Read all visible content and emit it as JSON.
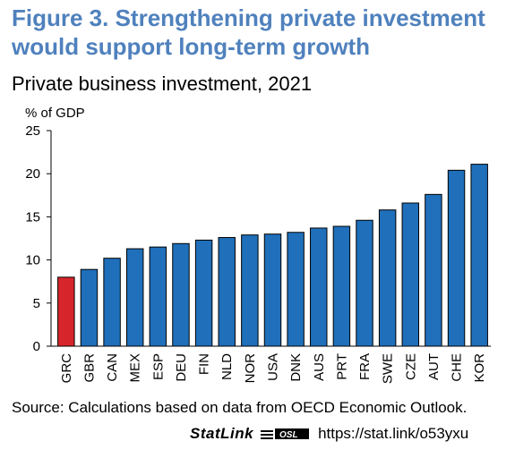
{
  "figure": {
    "title": "Figure 3. Strengthening private investment would support long-term growth",
    "subtitle": "Private business investment, 2021",
    "source": "Source: Calculations based on data from OECD Economic Outlook.",
    "statlink_label": "StatLink",
    "statlink_url": "https://stat.link/o53yxu"
  },
  "colors": {
    "bar": "#1f6fba",
    "highlight": "#d7262b",
    "title": "#4f81bd"
  },
  "chart_data": {
    "type": "bar",
    "ylabel": "% of GDP",
    "ylim": [
      0,
      25
    ],
    "yticks": [
      0,
      5,
      10,
      15,
      20,
      25
    ],
    "grid": false,
    "highlight_category": "GRC",
    "categories": [
      "GRC",
      "GBR",
      "CAN",
      "MEX",
      "ESP",
      "DEU",
      "FIN",
      "NLD",
      "NOR",
      "USA",
      "DNK",
      "AUS",
      "PRT",
      "FRA",
      "SWE",
      "CZE",
      "AUT",
      "CHE",
      "KOR"
    ],
    "values": [
      8.0,
      8.9,
      10.2,
      11.3,
      11.5,
      11.9,
      12.3,
      12.6,
      12.9,
      13.0,
      13.2,
      13.7,
      13.9,
      14.6,
      15.8,
      16.6,
      17.6,
      20.4,
      21.1
    ]
  }
}
